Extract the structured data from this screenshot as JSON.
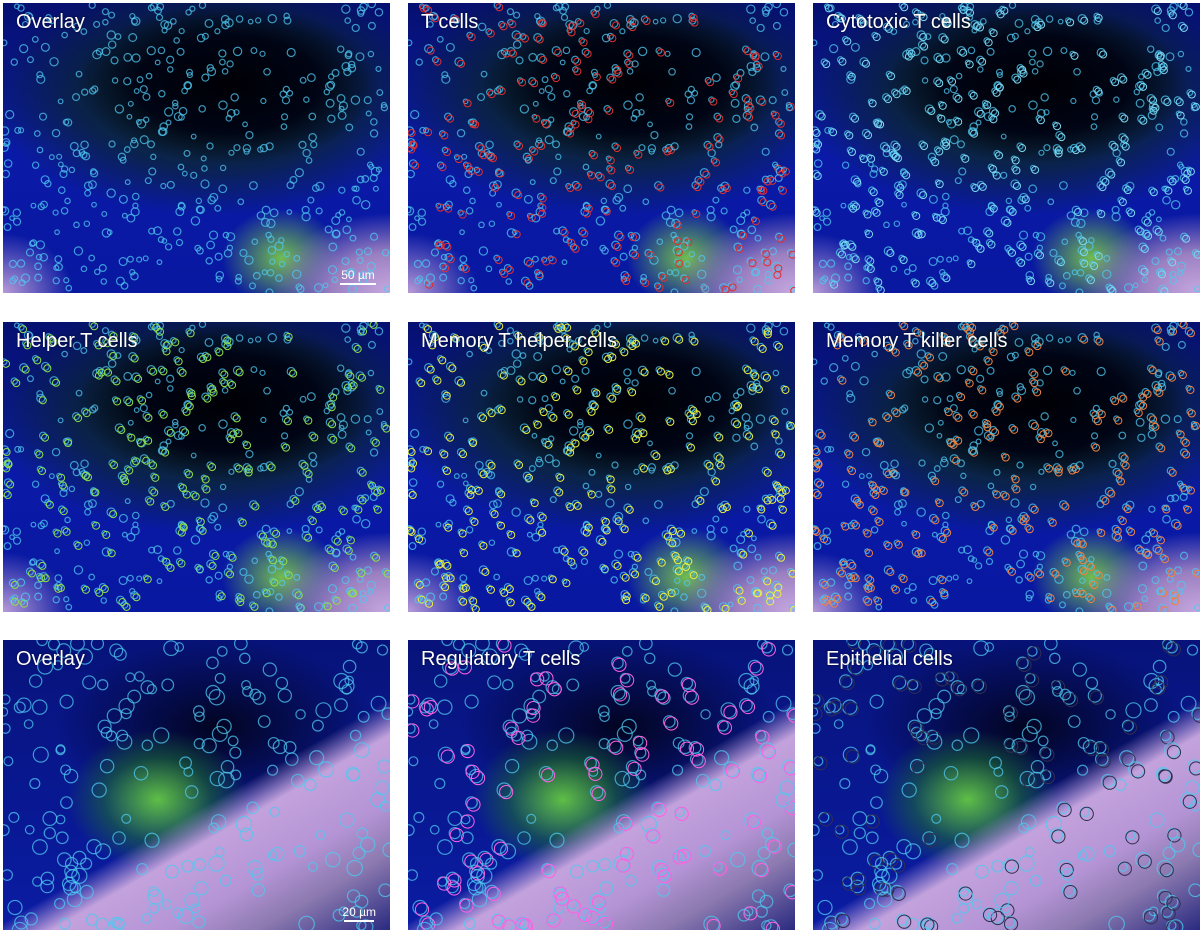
{
  "panels": [
    {
      "label": "Overlay",
      "view": "wide",
      "outline_color": null,
      "scale_bar": "50 µm"
    },
    {
      "label": "T cells",
      "view": "wide",
      "outline_color": "#e03030"
    },
    {
      "label": "Cytotoxic T cells",
      "view": "wide",
      "outline_color": "#7fd8f0"
    },
    {
      "label": "Helper T cells",
      "view": "wide",
      "outline_color": "#8ee04a"
    },
    {
      "label": "Memory T helper cells",
      "view": "wide",
      "outline_color": "#e8f040"
    },
    {
      "label": "Memory T killer cells",
      "view": "wide",
      "outline_color": "#f08040"
    },
    {
      "label": "Overlay",
      "view": "zoom",
      "outline_color": null,
      "scale_bar": "20 µm"
    },
    {
      "label": "Regulatory T cells",
      "view": "zoom",
      "outline_color": "#ff60e0"
    },
    {
      "label": "Epithelial cells",
      "view": "zoom",
      "outline_color": "#303050"
    }
  ]
}
